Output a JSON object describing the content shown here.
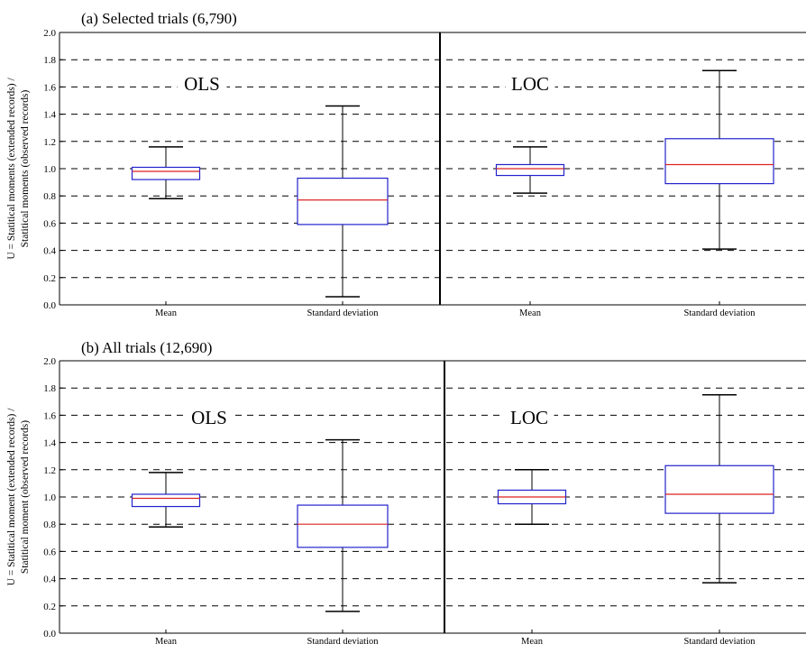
{
  "chart_data": [
    {
      "type": "boxplot",
      "title": "(a) Selected trials (6,790)",
      "ylabel": [
        "U = Statitical moments (extended records) /",
        "Statitical moments (observed records)"
      ],
      "ylim": [
        0,
        2.0
      ],
      "yticks": [
        "0.0",
        "0.2",
        "0.4",
        "0.6",
        "0.8",
        "1.0",
        "1.2",
        "1.4",
        "1.6",
        "1.8",
        "2.0"
      ],
      "grid": "horizontal-dashed",
      "groups": [
        {
          "label": "OLS",
          "boxes": [
            {
              "category": "Mean",
              "whisker_low": 0.78,
              "q1": 0.92,
              "median": 0.98,
              "q3": 1.01,
              "whisker_high": 1.16
            },
            {
              "category": "Standard deviation",
              "whisker_low": 0.06,
              "q1": 0.59,
              "median": 0.77,
              "q3": 0.93,
              "whisker_high": 1.46
            }
          ]
        },
        {
          "label": "LOC",
          "boxes": [
            {
              "category": "Mean",
              "whisker_low": 0.82,
              "q1": 0.95,
              "median": 1.0,
              "q3": 1.03,
              "whisker_high": 1.16
            },
            {
              "category": "Standard deviation",
              "whisker_low": 0.41,
              "q1": 0.89,
              "median": 1.03,
              "q3": 1.22,
              "whisker_high": 1.72
            }
          ]
        }
      ]
    },
    {
      "type": "boxplot",
      "title": "(b) All trials (12,690)",
      "ylabel": [
        "U = Statitical moment (extended records) /",
        "Statitical moment (observed records)"
      ],
      "ylim": [
        0,
        2.0
      ],
      "yticks": [
        "0.0",
        "0.2",
        "0.4",
        "0.6",
        "0.8",
        "1.0",
        "1.2",
        "1.4",
        "1.6",
        "1.8",
        "2.0"
      ],
      "grid": "horizontal-dashed",
      "groups": [
        {
          "label": "OLS",
          "boxes": [
            {
              "category": "Mean",
              "whisker_low": 0.78,
              "q1": 0.93,
              "median": 0.99,
              "q3": 1.02,
              "whisker_high": 1.18
            },
            {
              "category": "Standard deviation",
              "whisker_low": 0.16,
              "q1": 0.63,
              "median": 0.8,
              "q3": 0.94,
              "whisker_high": 1.42
            }
          ]
        },
        {
          "label": "LOC",
          "boxes": [
            {
              "category": "Mean",
              "whisker_low": 0.8,
              "q1": 0.95,
              "median": 1.0,
              "q3": 1.05,
              "whisker_high": 1.2
            },
            {
              "category": "Standard deviation",
              "whisker_low": 0.37,
              "q1": 0.88,
              "median": 1.02,
              "q3": 1.23,
              "whisker_high": 1.75
            }
          ]
        }
      ]
    }
  ],
  "colors": {
    "box": "#2222cc",
    "median": "#dd2222",
    "whisker": "#000000",
    "grid": "#000000"
  }
}
